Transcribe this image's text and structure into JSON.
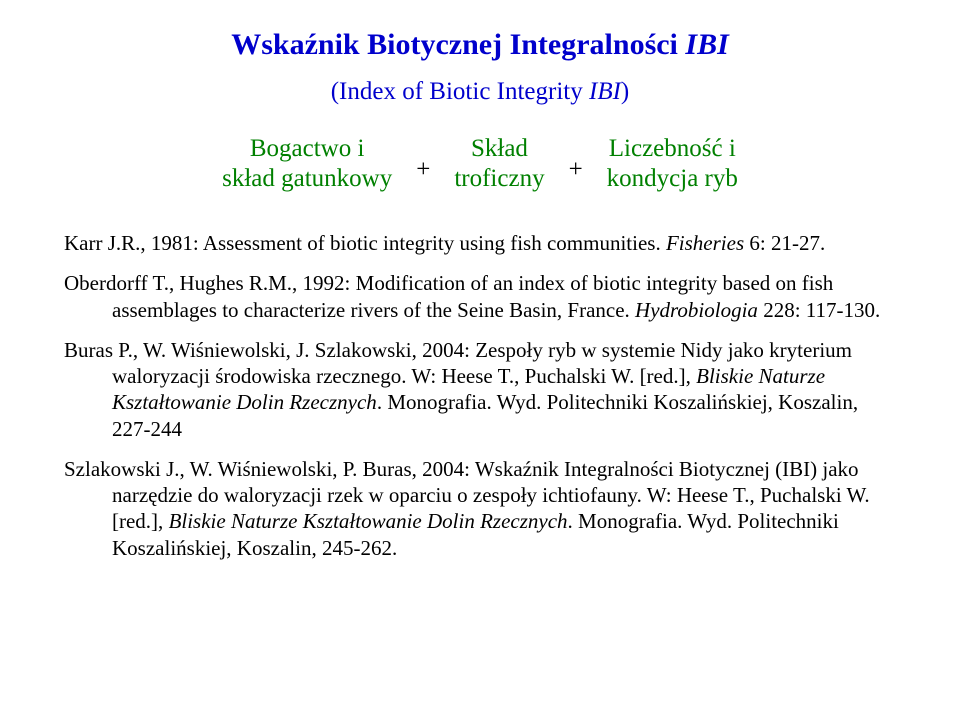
{
  "colors": {
    "title": "#0000cc",
    "formula": "#008000",
    "text": "#000000",
    "background": "#ffffff"
  },
  "title": {
    "prefix": "Wskaźnik Biotycznej Integralności ",
    "italic": "IBI"
  },
  "subtitle": {
    "prefix": "(Index of Biotic Integrity ",
    "italic": "IBI",
    "suffix": ")"
  },
  "formula": {
    "term1_line1": "Bogactwo i",
    "term1_line2": "skład gatunkowy",
    "plus": "+",
    "term2_line1": "Skład",
    "term2_line2": "troficzny",
    "term3_line1": "Liczebność i",
    "term3_line2": "kondycja ryb"
  },
  "refs": [
    {
      "pre": "Karr J.R., 1981: Assessment of biotic integrity using fish communities. ",
      "ital": "Fisheries",
      "post": " 6: 21-27."
    },
    {
      "pre": "Oberdorff T., Hughes R.M., 1992: Modification of an index of biotic integrity based on fish assemblages to characterize  rivers of the Seine Basin, France. ",
      "ital": "Hydrobiologia",
      "post": " 228: 117-130."
    },
    {
      "pre": "Buras P., W. Wiśniewolski, J. Szlakowski, 2004: Zespoły ryb w systemie Nidy   jako kryterium waloryzacji środowiska rzecznego. W: Heese T., Puchalski W. [red.], ",
      "ital": "Bliskie Naturze Kształtowanie Dolin Rzecznych",
      "post": ". Monografia. Wyd. Politechniki Koszalińskiej, Koszalin, 227-244"
    },
    {
      "pre": "Szlakowski J., W. Wiśniewolski, P. Buras, 2004: Wskaźnik Integralności  Biotycznej (IBI) jako narzędzie do waloryzacji rzek w oparciu o zespoły ichtiofauny. W: Heese T., Puchalski W. [red.], ",
      "ital": "Bliskie Naturze Kształtowanie Dolin Rzecznych",
      "post": ". Monografia. Wyd. Politechniki Koszalińskiej, Koszalin, 245-262."
    }
  ]
}
